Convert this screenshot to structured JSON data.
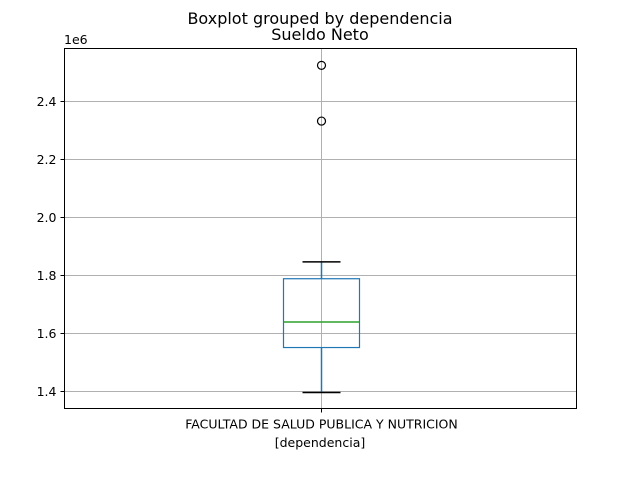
{
  "chart_data": {
    "type": "boxplot",
    "suptitle": "Boxplot grouped by dependencia",
    "title": "Sueldo Neto",
    "xlabel": "[dependencia]",
    "ylabel": "",
    "y_offset_label": "1e6",
    "y_scale": 1000000,
    "ylim": [
      1340000,
      2580000
    ],
    "yticks": [
      1400000,
      1600000,
      1800000,
      2000000,
      2200000,
      2400000
    ],
    "ytick_labels": [
      "1.4",
      "1.6",
      "1.8",
      "2.0",
      "2.2",
      "2.4"
    ],
    "grid": true,
    "categories": [
      "FACULTAD DE SALUD PUBLICA Y NUTRICION"
    ],
    "boxes": [
      {
        "category": "FACULTAD DE SALUD PUBLICA Y NUTRICION",
        "whisker_low": 1395000,
        "q1": 1550000,
        "median": 1638000,
        "q3": 1787000,
        "whisker_high": 1845000,
        "outliers": [
          2330000,
          2522000
        ]
      }
    ],
    "colors": {
      "box": "#1f77b4",
      "median": "#2ca02c",
      "whisker_cap": "#000000",
      "outlier": "#000000"
    }
  }
}
